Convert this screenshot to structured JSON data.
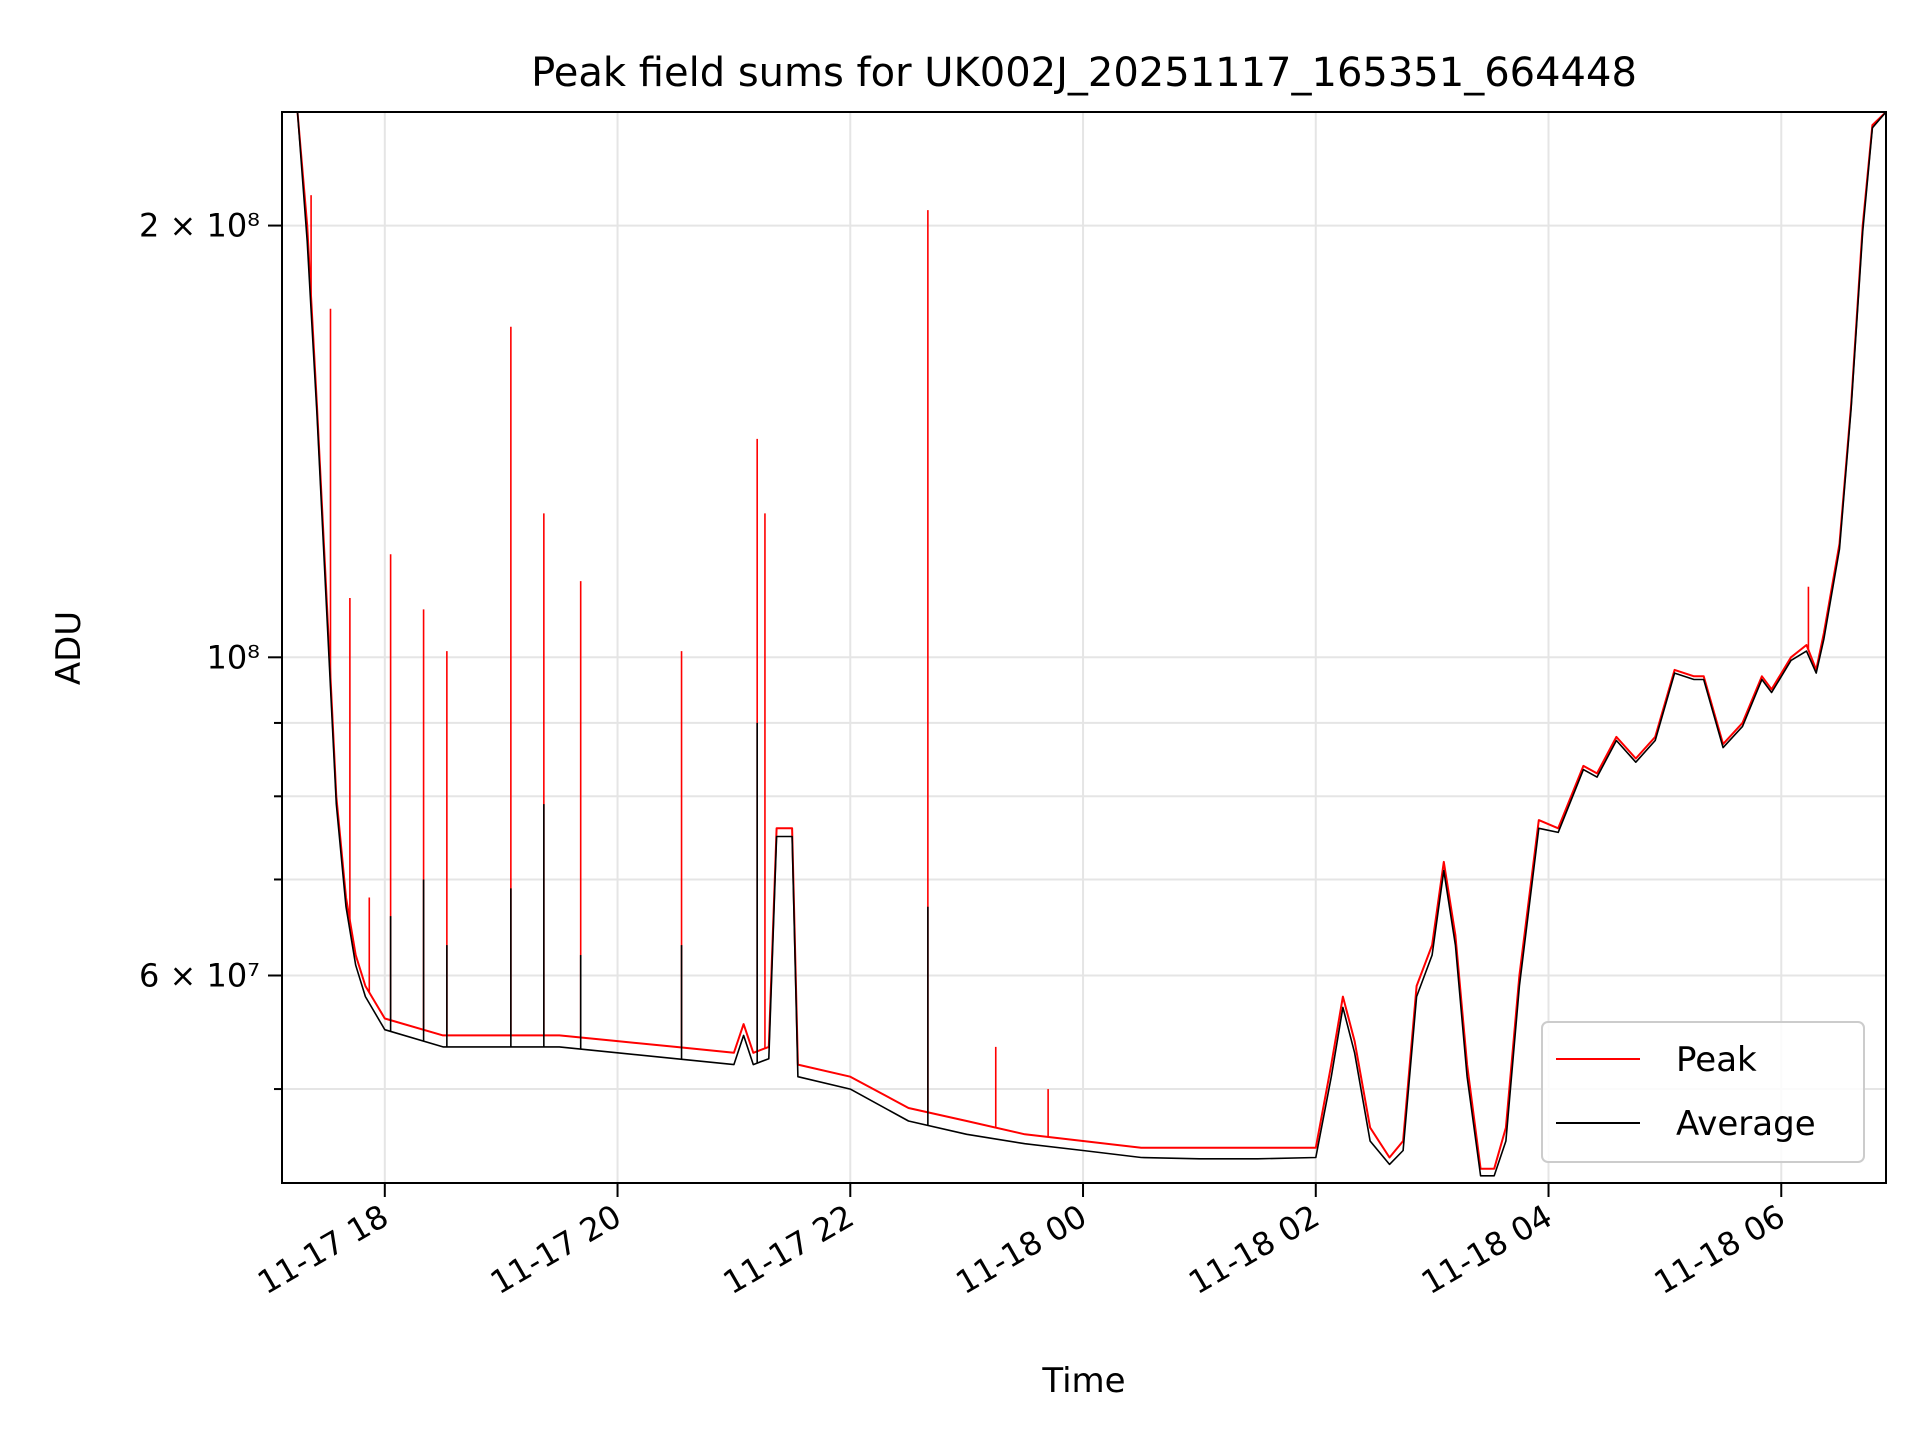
{
  "chart_data": {
    "type": "line",
    "title": "Peak field sums for UK002J_20251117_165351_664448",
    "xlabel": "Time",
    "ylabel": "ADU",
    "yscale": "log",
    "xlim": [
      "2025-11-17 17:07",
      "2025-11-18 06:54"
    ],
    "ylim": [
      43000000,
      240000000
    ],
    "x_ticks": [
      {
        "value": "2025-11-17 18:00",
        "label": "11-17 18"
      },
      {
        "value": "2025-11-17 20:00",
        "label": "11-17 20"
      },
      {
        "value": "2025-11-17 22:00",
        "label": "11-17 22"
      },
      {
        "value": "2025-11-18 00:00",
        "label": "11-18 00"
      },
      {
        "value": "2025-11-18 02:00",
        "label": "11-18 02"
      },
      {
        "value": "2025-11-18 04:00",
        "label": "11-18 04"
      },
      {
        "value": "2025-11-18 06:00",
        "label": "11-18 06"
      }
    ],
    "y_ticks": [
      {
        "value": 60000000,
        "label": "6 × 10⁷"
      },
      {
        "value": 100000000,
        "label": "10⁸"
      },
      {
        "value": 200000000,
        "label": "2 × 10⁸"
      }
    ],
    "y_minor_ticks": [
      50000000,
      70000000,
      80000000,
      90000000
    ],
    "grid": true,
    "legend_position": "bottom-right",
    "series": [
      {
        "name": "Peak",
        "color": "#ff0000",
        "points": [
          [
            "2025-11-17 17:07",
            240000000
          ],
          [
            "2025-11-17 17:15",
            240000000
          ],
          [
            "2025-11-17 17:20",
            200000000
          ],
          [
            "2025-11-17 17:25",
            150000000
          ],
          [
            "2025-11-17 17:30",
            110000000
          ],
          [
            "2025-11-17 17:35",
            80000000
          ],
          [
            "2025-11-17 17:40",
            68000000
          ],
          [
            "2025-11-17 17:45",
            62000000
          ],
          [
            "2025-11-17 17:50",
            59000000
          ],
          [
            "2025-11-17 18:00",
            56000000
          ],
          [
            "2025-11-17 18:30",
            54500000
          ],
          [
            "2025-11-17 19:00",
            54500000
          ],
          [
            "2025-11-17 19:30",
            54500000
          ],
          [
            "2025-11-17 20:00",
            54000000
          ],
          [
            "2025-11-17 20:30",
            53500000
          ],
          [
            "2025-11-17 21:00",
            53000000
          ],
          [
            "2025-11-17 21:05",
            55500000
          ],
          [
            "2025-11-17 21:10",
            53000000
          ],
          [
            "2025-11-17 21:18",
            53500000
          ],
          [
            "2025-11-17 21:22",
            76000000
          ],
          [
            "2025-11-17 21:30",
            76000000
          ],
          [
            "2025-11-17 21:33",
            52000000
          ],
          [
            "2025-11-17 22:00",
            51000000
          ],
          [
            "2025-11-17 22:30",
            48500000
          ],
          [
            "2025-11-17 23:00",
            47500000
          ],
          [
            "2025-11-17 23:30",
            46500000
          ],
          [
            "2025-11-18 00:00",
            46000000
          ],
          [
            "2025-11-18 00:30",
            45500000
          ],
          [
            "2025-11-18 01:00",
            45500000
          ],
          [
            "2025-11-18 01:30",
            45500000
          ],
          [
            "2025-11-18 02:00",
            45500000
          ],
          [
            "2025-11-18 02:08",
            52000000
          ],
          [
            "2025-11-18 02:14",
            58000000
          ],
          [
            "2025-11-18 02:20",
            54000000
          ],
          [
            "2025-11-18 02:28",
            47000000
          ],
          [
            "2025-11-18 02:38",
            44800000
          ],
          [
            "2025-11-18 02:45",
            46000000
          ],
          [
            "2025-11-18 02:52",
            59000000
          ],
          [
            "2025-11-18 03:00",
            63000000
          ],
          [
            "2025-11-18 03:06",
            72000000
          ],
          [
            "2025-11-18 03:12",
            64000000
          ],
          [
            "2025-11-18 03:18",
            52000000
          ],
          [
            "2025-11-18 03:25",
            44000000
          ],
          [
            "2025-11-18 03:32",
            44000000
          ],
          [
            "2025-11-18 03:38",
            47000000
          ],
          [
            "2025-11-18 03:45",
            60000000
          ],
          [
            "2025-11-18 03:55",
            77000000
          ],
          [
            "2025-11-18 04:05",
            76000000
          ],
          [
            "2025-11-18 04:18",
            84000000
          ],
          [
            "2025-11-18 04:25",
            83000000
          ],
          [
            "2025-11-18 04:35",
            88000000
          ],
          [
            "2025-11-18 04:45",
            85000000
          ],
          [
            "2025-11-18 04:55",
            88000000
          ],
          [
            "2025-11-18 05:05",
            98000000
          ],
          [
            "2025-11-18 05:15",
            97000000
          ],
          [
            "2025-11-18 05:20",
            97000000
          ],
          [
            "2025-11-18 05:30",
            87000000
          ],
          [
            "2025-11-18 05:40",
            90000000
          ],
          [
            "2025-11-18 05:50",
            97000000
          ],
          [
            "2025-11-18 05:55",
            95000000
          ],
          [
            "2025-11-18 06:05",
            100000000
          ],
          [
            "2025-11-18 06:13",
            102000000
          ],
          [
            "2025-11-18 06:18",
            98000000
          ],
          [
            "2025-11-18 06:22",
            104000000
          ],
          [
            "2025-11-18 06:30",
            120000000
          ],
          [
            "2025-11-18 06:36",
            150000000
          ],
          [
            "2025-11-18 06:42",
            200000000
          ],
          [
            "2025-11-18 06:47",
            235000000
          ],
          [
            "2025-11-18 06:54",
            240000000
          ]
        ]
      },
      {
        "name": "Average",
        "color": "#000000",
        "points": [
          [
            "2025-11-17 17:07",
            240000000
          ],
          [
            "2025-11-17 17:15",
            240000000
          ],
          [
            "2025-11-17 17:20",
            195000000
          ],
          [
            "2025-11-17 17:25",
            148000000
          ],
          [
            "2025-11-17 17:30",
            108000000
          ],
          [
            "2025-11-17 17:35",
            79000000
          ],
          [
            "2025-11-17 17:40",
            67000000
          ],
          [
            "2025-11-17 17:45",
            61000000
          ],
          [
            "2025-11-17 17:50",
            58000000
          ],
          [
            "2025-11-17 18:00",
            55000000
          ],
          [
            "2025-11-17 18:30",
            53500000
          ],
          [
            "2025-11-17 19:00",
            53500000
          ],
          [
            "2025-11-17 19:30",
            53500000
          ],
          [
            "2025-11-17 20:00",
            53000000
          ],
          [
            "2025-11-17 20:30",
            52500000
          ],
          [
            "2025-11-17 21:00",
            52000000
          ],
          [
            "2025-11-17 21:05",
            54500000
          ],
          [
            "2025-11-17 21:10",
            52000000
          ],
          [
            "2025-11-17 21:18",
            52500000
          ],
          [
            "2025-11-17 21:22",
            75000000
          ],
          [
            "2025-11-17 21:30",
            75000000
          ],
          [
            "2025-11-17 21:33",
            51000000
          ],
          [
            "2025-11-17 22:00",
            50000000
          ],
          [
            "2025-11-17 22:30",
            47500000
          ],
          [
            "2025-11-17 23:00",
            46500000
          ],
          [
            "2025-11-17 23:30",
            45800000
          ],
          [
            "2025-11-18 00:00",
            45300000
          ],
          [
            "2025-11-18 00:30",
            44800000
          ],
          [
            "2025-11-18 01:00",
            44700000
          ],
          [
            "2025-11-18 01:30",
            44700000
          ],
          [
            "2025-11-18 02:00",
            44800000
          ],
          [
            "2025-11-18 02:08",
            51000000
          ],
          [
            "2025-11-18 02:14",
            57000000
          ],
          [
            "2025-11-18 02:20",
            53000000
          ],
          [
            "2025-11-18 02:28",
            46000000
          ],
          [
            "2025-11-18 02:38",
            44300000
          ],
          [
            "2025-11-18 02:45",
            45300000
          ],
          [
            "2025-11-18 02:52",
            58000000
          ],
          [
            "2025-11-18 03:00",
            62000000
          ],
          [
            "2025-11-18 03:06",
            71000000
          ],
          [
            "2025-11-18 03:12",
            63000000
          ],
          [
            "2025-11-18 03:18",
            51000000
          ],
          [
            "2025-11-18 03:25",
            43500000
          ],
          [
            "2025-11-18 03:32",
            43500000
          ],
          [
            "2025-11-18 03:38",
            46000000
          ],
          [
            "2025-11-18 03:45",
            59000000
          ],
          [
            "2025-11-18 03:55",
            76000000
          ],
          [
            "2025-11-18 04:05",
            75500000
          ],
          [
            "2025-11-18 04:18",
            83500000
          ],
          [
            "2025-11-18 04:25",
            82500000
          ],
          [
            "2025-11-18 04:35",
            87500000
          ],
          [
            "2025-11-18 04:45",
            84500000
          ],
          [
            "2025-11-18 04:55",
            87500000
          ],
          [
            "2025-11-18 05:05",
            97500000
          ],
          [
            "2025-11-18 05:15",
            96500000
          ],
          [
            "2025-11-18 05:20",
            96500000
          ],
          [
            "2025-11-18 05:30",
            86500000
          ],
          [
            "2025-11-18 05:40",
            89500000
          ],
          [
            "2025-11-18 05:50",
            96500000
          ],
          [
            "2025-11-18 05:55",
            94500000
          ],
          [
            "2025-11-18 06:05",
            99500000
          ],
          [
            "2025-11-18 06:13",
            101000000
          ],
          [
            "2025-11-18 06:18",
            97500000
          ],
          [
            "2025-11-18 06:22",
            103000000
          ],
          [
            "2025-11-18 06:30",
            119000000
          ],
          [
            "2025-11-18 06:36",
            149000000
          ],
          [
            "2025-11-18 06:42",
            198000000
          ],
          [
            "2025-11-18 06:47",
            234000000
          ],
          [
            "2025-11-18 06:54",
            240000000
          ]
        ]
      }
    ],
    "peak_spikes": [
      {
        "time": "2025-11-17 17:22",
        "value": 210000000
      },
      {
        "time": "2025-11-17 17:32",
        "value": 175000000
      },
      {
        "time": "2025-11-17 17:42",
        "value": 110000000
      },
      {
        "time": "2025-11-17 17:52",
        "value": 68000000
      },
      {
        "time": "2025-11-17 18:03",
        "value": 118000000
      },
      {
        "time": "2025-11-17 18:20",
        "value": 108000000
      },
      {
        "time": "2025-11-17 18:32",
        "value": 101000000
      },
      {
        "time": "2025-11-17 19:05",
        "value": 170000000
      },
      {
        "time": "2025-11-17 19:22",
        "value": 126000000
      },
      {
        "time": "2025-11-17 19:41",
        "value": 113000000
      },
      {
        "time": "2025-11-17 20:33",
        "value": 101000000
      },
      {
        "time": "2025-11-17 21:12",
        "value": 142000000
      },
      {
        "time": "2025-11-17 21:16",
        "value": 126000000
      },
      {
        "time": "2025-11-17 22:40",
        "value": 205000000
      },
      {
        "time": "2025-11-17 23:15",
        "value": 53500000
      },
      {
        "time": "2025-11-17 23:42",
        "value": 50000000
      },
      {
        "time": "2025-11-18 06:14",
        "value": 112000000
      }
    ],
    "average_spikes": [
      {
        "time": "2025-11-17 18:03",
        "value": 66000000
      },
      {
        "time": "2025-11-17 18:20",
        "value": 70000000
      },
      {
        "time": "2025-11-17 18:32",
        "value": 63000000
      },
      {
        "time": "2025-11-17 19:05",
        "value": 69000000
      },
      {
        "time": "2025-11-17 19:22",
        "value": 79000000
      },
      {
        "time": "2025-11-17 19:41",
        "value": 62000000
      },
      {
        "time": "2025-11-17 20:33",
        "value": 63000000
      },
      {
        "time": "2025-11-17 21:12",
        "value": 90000000
      },
      {
        "time": "2025-11-17 22:40",
        "value": 67000000
      }
    ]
  }
}
